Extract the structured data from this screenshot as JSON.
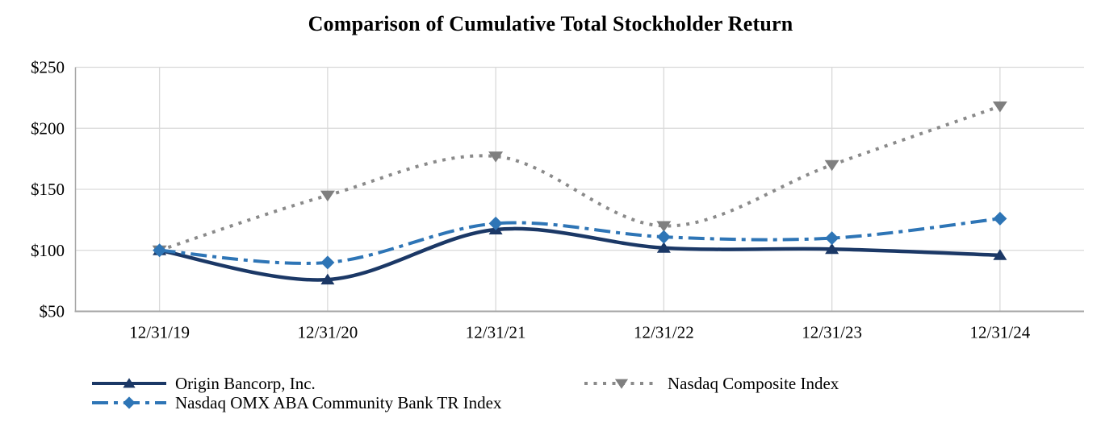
{
  "chart_data": {
    "type": "line",
    "title": "Comparison of Cumulative Total Stockholder Return",
    "categories": [
      "12/31/19",
      "12/31/20",
      "12/31/21",
      "12/31/22",
      "12/31/23",
      "12/31/24"
    ],
    "xlabel": "",
    "ylabel": "",
    "ylim": [
      50,
      250
    ],
    "grid": true,
    "legend_position": "bottom",
    "y_ticks": [
      {
        "value": 50,
        "label": "$50"
      },
      {
        "value": 100,
        "label": "$100"
      },
      {
        "value": 150,
        "label": "$150"
      },
      {
        "value": 200,
        "label": "$200"
      },
      {
        "value": 250,
        "label": "$250"
      }
    ],
    "series": [
      {
        "name": "Origin Bancorp, Inc.",
        "values": [
          100,
          76,
          117,
          102,
          101,
          96
        ],
        "color": "#1B3866",
        "line_style": "solid",
        "marker": "triangle-up"
      },
      {
        "name": "Nasdaq OMX ABA Community Bank TR Index",
        "values": [
          100,
          90,
          122,
          111,
          110,
          126
        ],
        "color": "#2E75B6",
        "line_style": "dash-dot",
        "marker": "diamond"
      },
      {
        "name": "Nasdaq Composite Index",
        "values": [
          100,
          145,
          177,
          120,
          170,
          218
        ],
        "color": "#8A8A8A",
        "marker_color": "#7F7F7F",
        "line_style": "dotted",
        "marker": "triangle-down"
      }
    ],
    "legend_layout": {
      "left_column": [
        0,
        1
      ],
      "right_column": [
        2
      ]
    },
    "colors": {
      "gridline": "#D9D9D9",
      "axis_line": "#A6A6A6",
      "text": "#000000"
    }
  }
}
